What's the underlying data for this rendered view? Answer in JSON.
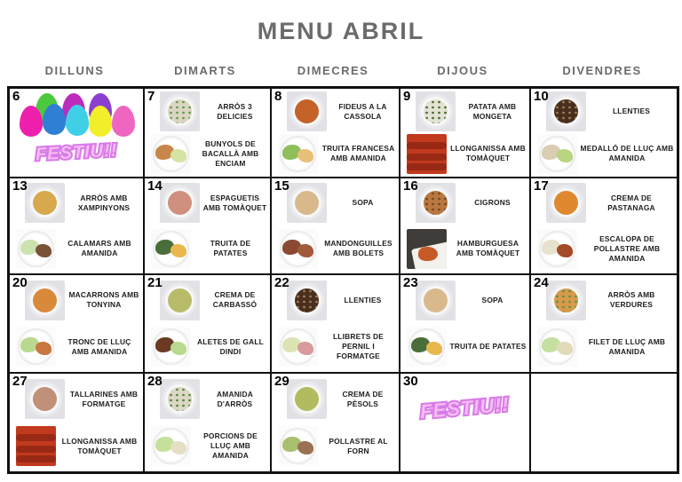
{
  "title": "MENU ABRIL",
  "header": {
    "days": [
      {
        "label": "DILLUNS"
      },
      {
        "label": "DIMARTS"
      },
      {
        "label": "DIMECRES"
      },
      {
        "label": "DIJOUS"
      },
      {
        "label": "DIVENDRES"
      }
    ]
  },
  "festiu_label": "FESTIU!!",
  "colors": {
    "grid_line": "#111111",
    "title_gray": "#6b6b6b",
    "text_dark": "#1e1e1e",
    "festiu_fill": "#f5bbf3",
    "festiu_outline": "#d87ae8"
  },
  "easter_eggs": {
    "name": "easter-eggs-image",
    "colors": [
      "#4cc93f",
      "#bc2bbc",
      "#8a3fd0",
      "#ef1fae",
      "#2f7fd4",
      "#3fd0e8",
      "#f2ee2a",
      "#ef66c0"
    ]
  },
  "calendar": {
    "rows": [
      [
        {
          "day": "6",
          "type": "festiu_eggs"
        },
        {
          "day": "7",
          "dishes": [
            {
              "label": "ARRÒS 3 DELICIES",
              "photo": {
                "kind": "bowl",
                "food": "#dcd5c2",
                "fleck": "#6a9e5a"
              }
            },
            {
              "label": "BUNYOLS DE BACALLÀ AMB ENCIAM",
              "photo": {
                "kind": "plate",
                "blobs": [
                  "#c8874a",
                  "#d4e4a2"
                ]
              }
            }
          ]
        },
        {
          "day": "8",
          "dishes": [
            {
              "label": "FIDEUS A LA CASSOLA",
              "photo": {
                "kind": "bowl",
                "food": "#c4622a",
                "fleck": null
              }
            },
            {
              "label": "TRUITA FRANCESA AMB AMANIDA",
              "photo": {
                "kind": "plate",
                "blobs": [
                  "#8fbf5a",
                  "#e8c078"
                ]
              }
            }
          ]
        },
        {
          "day": "9",
          "dishes": [
            {
              "label": "PATATA AMB MONGETA",
              "photo": {
                "kind": "bowl",
                "food": "#e3e3d4",
                "fleck": "#55703a"
              }
            },
            {
              "label": "LLONGANISSA AMB TOMÀQUET",
              "photo": {
                "kind": "full",
                "bg": "#c23a1e",
                "accent": "#8a2412"
              }
            }
          ]
        },
        {
          "day": "10",
          "dishes": [
            {
              "label": "LLENTIES",
              "photo": {
                "kind": "bowl",
                "food": "#4a2f1e",
                "fleck": "#9a7a55"
              }
            },
            {
              "label": "MEDALLÓ DE LLUÇ AMB AMANIDA",
              "photo": {
                "kind": "plate",
                "blobs": [
                  "#d9cdb2",
                  "#b9d580"
                ]
              }
            }
          ]
        }
      ],
      [
        {
          "day": "13",
          "dishes": [
            {
              "label": "ARRÒS AMB XAMPINYONS",
              "photo": {
                "kind": "bowl",
                "food": "#d8a84e",
                "fleck": null
              }
            },
            {
              "label": "CALAMARS AMB AMANIDA",
              "photo": {
                "kind": "plate",
                "blobs": [
                  "#cce3b0",
                  "#7a5238"
                ]
              }
            }
          ]
        },
        {
          "day": "14",
          "dishes": [
            {
              "label": "ESPAGUETIS AMB TOMÀQUET",
              "photo": {
                "kind": "bowl",
                "food": "#cf9080",
                "fleck": null
              }
            },
            {
              "label": "TRUITA DE PATATES",
              "photo": {
                "kind": "plate",
                "blobs": [
                  "#4a6e3a",
                  "#e8b84e"
                ]
              }
            }
          ]
        },
        {
          "day": "15",
          "dishes": [
            {
              "label": "SOPA",
              "photo": {
                "kind": "bowl",
                "food": "#d9b98c",
                "fleck": null
              }
            },
            {
              "label": "MANDONGUILLES AMB BOLETS",
              "photo": {
                "kind": "plate",
                "blobs": [
                  "#8a4a32",
                  "#a05a3a"
                ]
              }
            }
          ]
        },
        {
          "day": "16",
          "dishes": [
            {
              "label": "CIGRONS",
              "photo": {
                "kind": "bowl",
                "food": "#b87840",
                "fleck": "#7a4a22"
              }
            },
            {
              "label": "HAMBURGUESA AMB TOMÀQUET",
              "photo": {
                "kind": "full-dark",
                "bg": "#3f3b38",
                "accent": "#c85a28"
              }
            }
          ]
        },
        {
          "day": "17",
          "dishes": [
            {
              "label": "CREMA DE PASTANAGA",
              "photo": {
                "kind": "bowl",
                "food": "#e08830",
                "fleck": null
              }
            },
            {
              "label": "ESCALOPA DE POLLASTRE AMB AMANIDA",
              "photo": {
                "kind": "plate",
                "blobs": [
                  "#e8e2cc",
                  "#a34a28"
                ]
              }
            }
          ]
        }
      ],
      [
        {
          "day": "20",
          "dishes": [
            {
              "label": "MACARRONS AMB TONYINA",
              "photo": {
                "kind": "bowl",
                "food": "#d8893a",
                "fleck": null
              }
            },
            {
              "label": "TRONC DE LLUÇ AMB AMANIDA",
              "photo": {
                "kind": "plate",
                "blobs": [
                  "#b9da8e",
                  "#c87840"
                ]
              }
            }
          ]
        },
        {
          "day": "21",
          "dishes": [
            {
              "label": "CREMA DE CARBASSÓ",
              "photo": {
                "kind": "bowl",
                "food": "#b8bc6a",
                "fleck": null
              }
            },
            {
              "label": "ALETES DE GALL DINDI",
              "photo": {
                "kind": "plate",
                "blobs": [
                  "#6a3a22",
                  "#b9da8e"
                ]
              }
            }
          ]
        },
        {
          "day": "22",
          "dishes": [
            {
              "label": "LLENTIES",
              "photo": {
                "kind": "bowl",
                "food": "#4a2f1e",
                "fleck": "#9a7a55"
              }
            },
            {
              "label": "LLIBRETS DE PERNIL I FORMATGE",
              "photo": {
                "kind": "plate",
                "blobs": [
                  "#dde4b4",
                  "#d89a9a"
                ]
              }
            }
          ]
        },
        {
          "day": "23",
          "dishes": [
            {
              "label": "SOPA",
              "photo": {
                "kind": "bowl",
                "food": "#d9b98c",
                "fleck": null
              }
            },
            {
              "label": "TRUITA DE PATATES",
              "photo": {
                "kind": "plate",
                "blobs": [
                  "#4a6e3a",
                  "#e8b84e"
                ]
              }
            }
          ]
        },
        {
          "day": "24",
          "dishes": [
            {
              "label": "ARRÒS AMB VERDURES",
              "photo": {
                "kind": "bowl",
                "food": "#d89a48",
                "fleck": "#6a8e4a"
              }
            },
            {
              "label": "FILET DE LLUÇ AMB AMANIDA",
              "photo": {
                "kind": "plate",
                "blobs": [
                  "#c5e0a0",
                  "#e2dab8"
                ]
              }
            }
          ]
        }
      ],
      [
        {
          "day": "27",
          "dishes": [
            {
              "label": "TALLARINES AMB FORMATGE",
              "photo": {
                "kind": "bowl",
                "food": "#c09078",
                "fleck": null
              }
            },
            {
              "label": "LLONGANISSA AMB TOMÀQUET",
              "photo": {
                "kind": "full",
                "bg": "#c23a1e",
                "accent": "#8a2412"
              }
            }
          ]
        },
        {
          "day": "28",
          "dishes": [
            {
              "label": "AMANIDA D'ARRÒS",
              "photo": {
                "kind": "bowl",
                "food": "#ddd7c4",
                "fleck": "#5a8e4a"
              }
            },
            {
              "label": "PORCIONS DE LLUÇ AMB AMANIDA",
              "photo": {
                "kind": "plate",
                "blobs": [
                  "#c5e09a",
                  "#e6dfc6"
                ]
              }
            }
          ]
        },
        {
          "day": "29",
          "dishes": [
            {
              "label": "CREMA DE PÈSOLS",
              "photo": {
                "kind": "bowl",
                "food": "#b2bc5e",
                "fleck": null
              }
            },
            {
              "label": "POLLASTRE AL FORN",
              "photo": {
                "kind": "plate",
                "blobs": [
                  "#a8c070",
                  "#9a7252"
                ]
              }
            }
          ]
        },
        {
          "day": "30",
          "type": "festiu"
        },
        {
          "type": "empty"
        }
      ]
    ]
  }
}
